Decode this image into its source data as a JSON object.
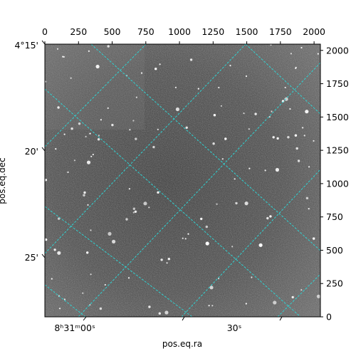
{
  "figure": {
    "xlabel": "pos.eq.ra",
    "ylabel": "pos.eq.dec",
    "ra_ticks": [
      {
        "label": "8ʰ31ᵐ00ˢ"
      },
      {
        "label": "30ˢ"
      }
    ],
    "dec_ticks": [
      {
        "label": "4°15'"
      },
      {
        "label": "20'"
      },
      {
        "label": "25'"
      }
    ],
    "pixel_x_ticks": [
      "0",
      "250",
      "500",
      "750",
      "1000",
      "1250",
      "1500",
      "1750",
      "2000"
    ],
    "pixel_y_ticks": [
      "0",
      "250",
      "500",
      "750",
      "1000",
      "1250",
      "1500",
      "1750",
      "2000"
    ],
    "grid_color": "#2fd3d3",
    "frame_color": "#000000",
    "image_cmap": "gray"
  }
}
